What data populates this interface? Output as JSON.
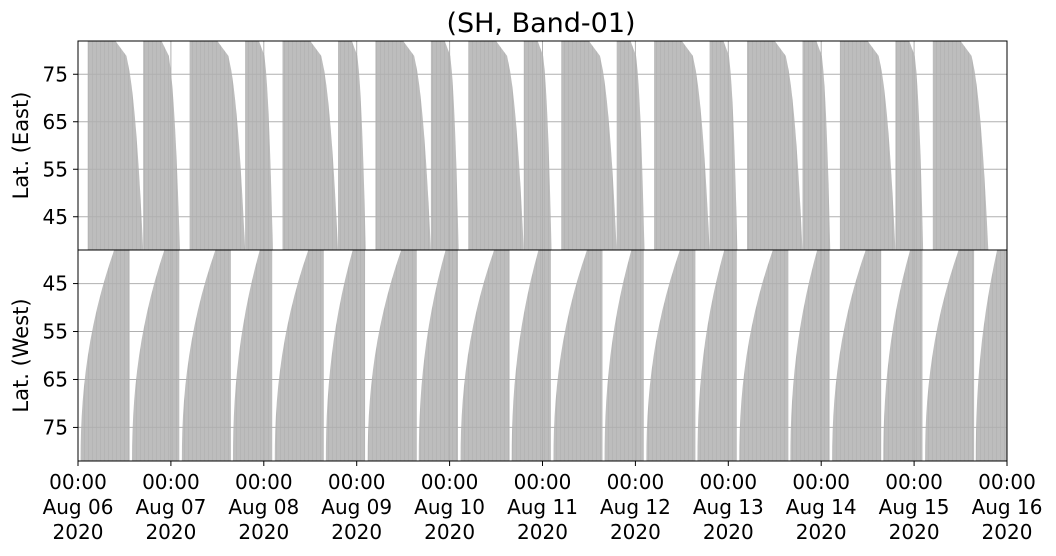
{
  "chart_data": {
    "type": "area",
    "title": "(SH, Band-01)",
    "x_tick_labels": [
      {
        "time": "00:00",
        "date": "Aug 06",
        "year": "2020"
      },
      {
        "time": "00:00",
        "date": "Aug 07",
        "year": "2020"
      },
      {
        "time": "00:00",
        "date": "Aug 08",
        "year": "2020"
      },
      {
        "time": "00:00",
        "date": "Aug 09",
        "year": "2020"
      },
      {
        "time": "00:00",
        "date": "Aug 10",
        "year": "2020"
      },
      {
        "time": "00:00",
        "date": "Aug 11",
        "year": "2020"
      },
      {
        "time": "00:00",
        "date": "Aug 12",
        "year": "2020"
      },
      {
        "time": "00:00",
        "date": "Aug 13",
        "year": "2020"
      },
      {
        "time": "00:00",
        "date": "Aug 14",
        "year": "2020"
      },
      {
        "time": "00:00",
        "date": "Aug 15",
        "year": "2020"
      },
      {
        "time": "00:00",
        "date": "Aug 16",
        "year": "2020"
      }
    ],
    "xlim": [
      "2020-08-06T00:00",
      "2020-08-16T00:00"
    ],
    "grid": true,
    "panels": [
      {
        "name": "east",
        "ylabel": "Lat. (East)",
        "ylim": [
          38,
          82
        ],
        "y_inverted": false,
        "yticks": [
          45,
          55,
          65,
          75
        ],
        "coverage_intervals": [
          {
            "start": "2020-08-06T02:30",
            "end": "2020-08-06T16:50"
          },
          {
            "start": "2020-08-06T16:50",
            "end": "2020-08-07T02:20"
          },
          {
            "start": "2020-08-07T04:50",
            "end": "2020-08-07T19:10"
          },
          {
            "start": "2020-08-07T19:10",
            "end": "2020-08-08T02:20"
          },
          {
            "start": "2020-08-08T04:50",
            "end": "2020-08-08T19:10"
          },
          {
            "start": "2020-08-08T19:10",
            "end": "2020-08-09T02:20"
          },
          {
            "start": "2020-08-09T04:50",
            "end": "2020-08-09T19:10"
          },
          {
            "start": "2020-08-09T19:10",
            "end": "2020-08-10T02:20"
          },
          {
            "start": "2020-08-10T04:50",
            "end": "2020-08-10T19:10"
          },
          {
            "start": "2020-08-10T19:10",
            "end": "2020-08-11T02:20"
          },
          {
            "start": "2020-08-11T04:50",
            "end": "2020-08-11T19:10"
          },
          {
            "start": "2020-08-11T19:10",
            "end": "2020-08-12T02:20"
          },
          {
            "start": "2020-08-12T04:50",
            "end": "2020-08-12T19:10"
          },
          {
            "start": "2020-08-12T19:10",
            "end": "2020-08-13T02:20"
          },
          {
            "start": "2020-08-13T04:50",
            "end": "2020-08-13T19:10"
          },
          {
            "start": "2020-08-13T19:10",
            "end": "2020-08-14T02:20"
          },
          {
            "start": "2020-08-14T04:50",
            "end": "2020-08-14T19:10"
          },
          {
            "start": "2020-08-14T19:10",
            "end": "2020-08-15T02:20"
          },
          {
            "start": "2020-08-15T04:50",
            "end": "2020-08-15T19:10"
          }
        ]
      },
      {
        "name": "west",
        "ylabel": "Lat. (West)",
        "ylim": [
          38,
          82
        ],
        "y_inverted": true,
        "yticks": [
          45,
          55,
          65,
          75
        ],
        "coverage_intervals": [
          {
            "start": "2020-08-06T00:00",
            "end": "2020-08-06T13:20"
          },
          {
            "start": "2020-08-06T13:20",
            "end": "2020-08-07T02:10"
          },
          {
            "start": "2020-08-07T02:10",
            "end": "2020-08-07T15:30"
          },
          {
            "start": "2020-08-07T15:30",
            "end": "2020-08-08T02:10"
          },
          {
            "start": "2020-08-08T02:10",
            "end": "2020-08-08T15:30"
          },
          {
            "start": "2020-08-08T15:30",
            "end": "2020-08-09T02:10"
          },
          {
            "start": "2020-08-09T02:10",
            "end": "2020-08-09T15:30"
          },
          {
            "start": "2020-08-09T15:30",
            "end": "2020-08-10T02:10"
          },
          {
            "start": "2020-08-10T02:10",
            "end": "2020-08-10T15:30"
          },
          {
            "start": "2020-08-10T15:30",
            "end": "2020-08-11T02:10"
          },
          {
            "start": "2020-08-11T02:10",
            "end": "2020-08-11T15:30"
          },
          {
            "start": "2020-08-11T15:30",
            "end": "2020-08-12T02:10"
          },
          {
            "start": "2020-08-12T02:10",
            "end": "2020-08-12T15:30"
          },
          {
            "start": "2020-08-12T15:30",
            "end": "2020-08-13T02:10"
          },
          {
            "start": "2020-08-13T02:10",
            "end": "2020-08-13T15:30"
          },
          {
            "start": "2020-08-13T15:30",
            "end": "2020-08-14T02:10"
          },
          {
            "start": "2020-08-14T02:10",
            "end": "2020-08-14T15:30"
          },
          {
            "start": "2020-08-14T15:30",
            "end": "2020-08-15T02:10"
          },
          {
            "start": "2020-08-15T02:10",
            "end": "2020-08-15T15:30"
          },
          {
            "start": "2020-08-15T15:30",
            "end": "2020-08-16T00:00"
          }
        ]
      }
    ],
    "colors": {
      "coverage": "#bdbdbd",
      "grid": "#b0b0b0",
      "frame": "#000000"
    }
  }
}
